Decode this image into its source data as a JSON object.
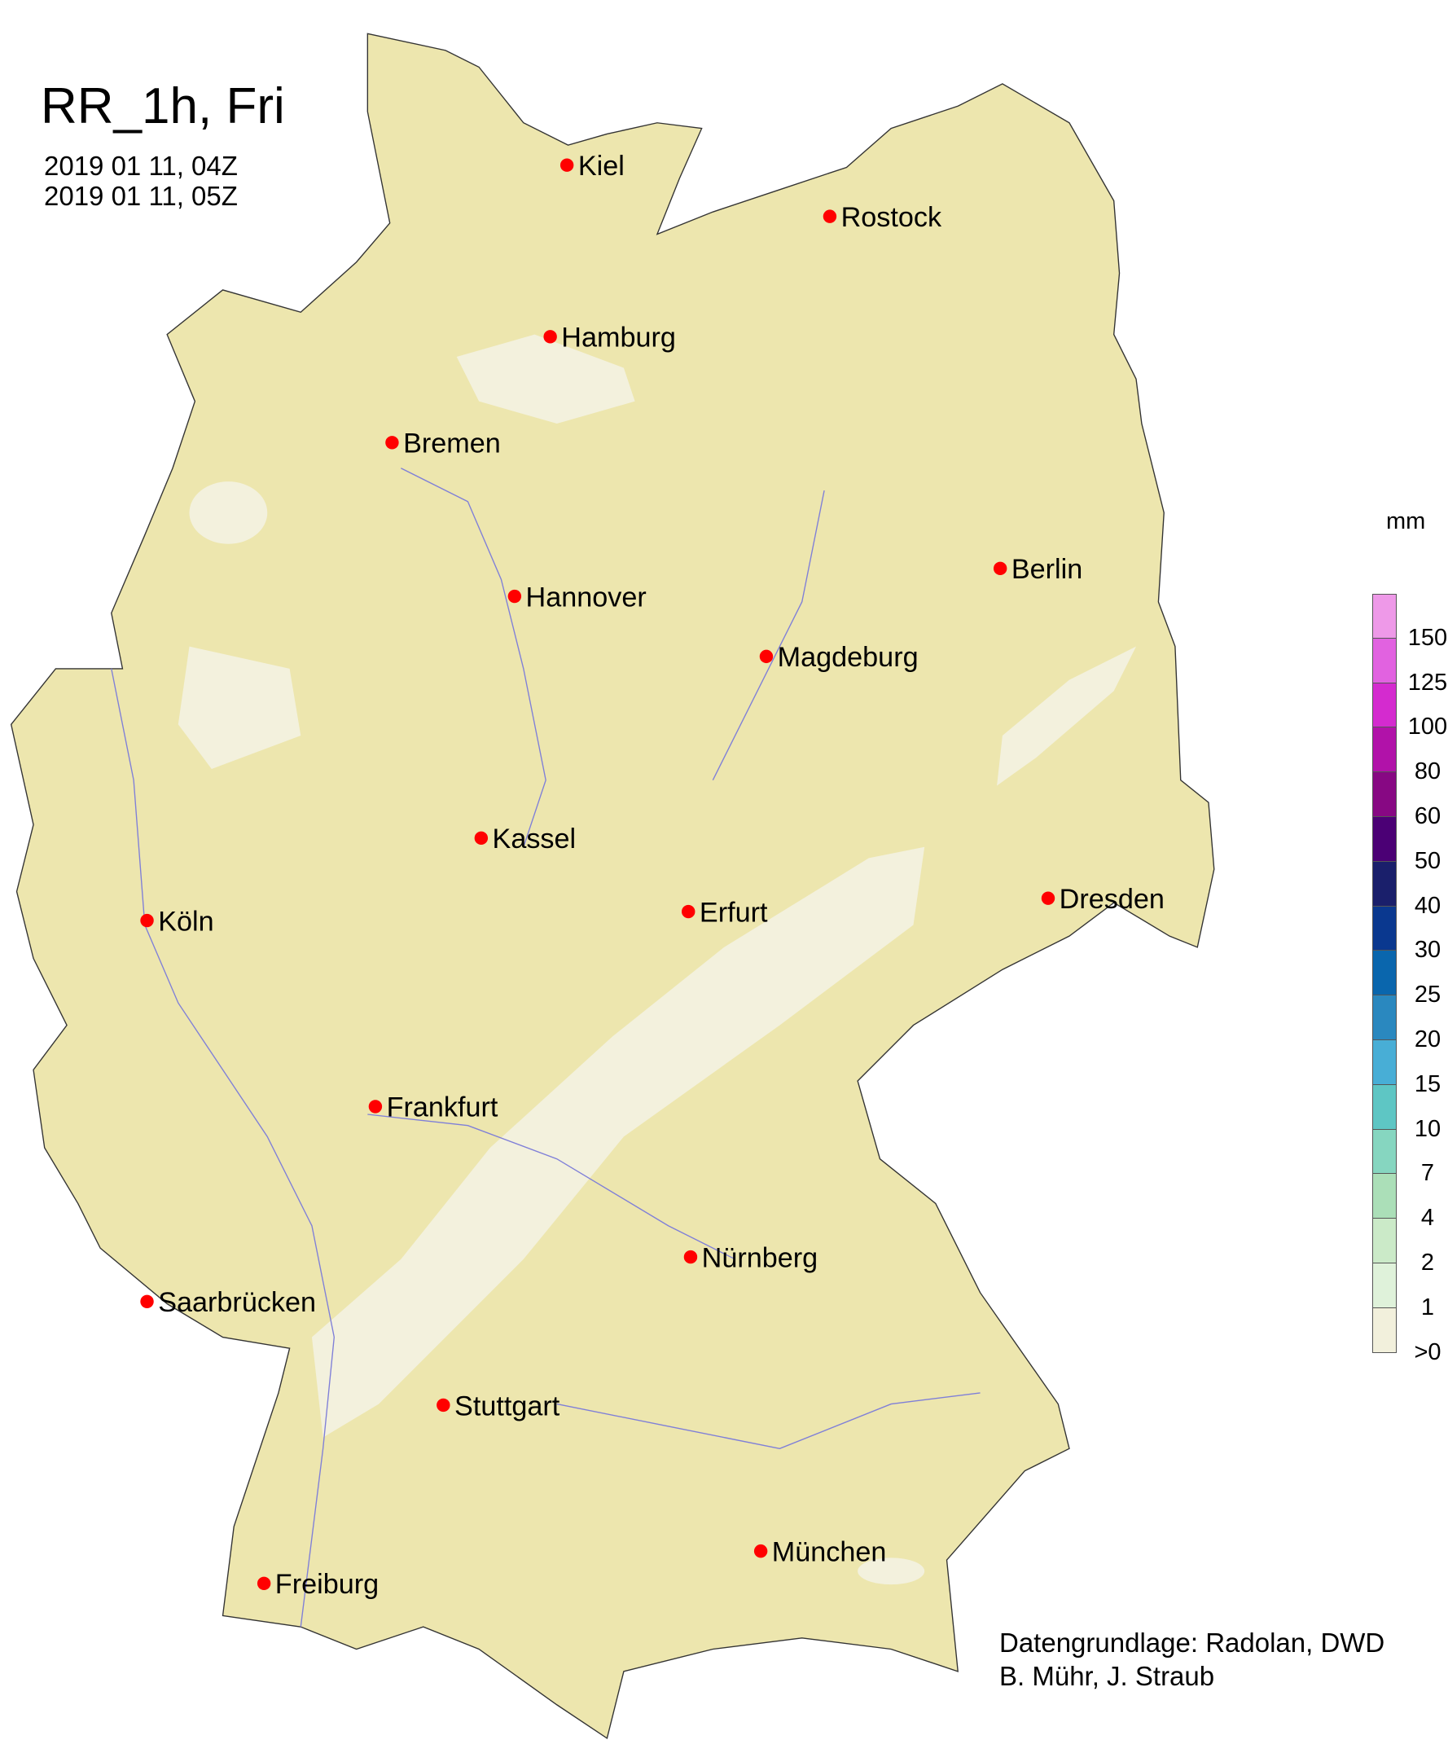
{
  "header": {
    "title": "RR_1h, Fri",
    "period_start": "2019 01 11, 04Z",
    "period_end": "2019 01 11, 05Z"
  },
  "map": {
    "land_color": "#ede6ae",
    "light_precip_color": "#f3f1dd",
    "marker_color": "#ff0000",
    "river_color": "#7f7fd8",
    "cities": [
      {
        "name": "Kiel"
      },
      {
        "name": "Rostock"
      },
      {
        "name": "Hamburg"
      },
      {
        "name": "Bremen"
      },
      {
        "name": "Berlin"
      },
      {
        "name": "Hannover"
      },
      {
        "name": "Magdeburg"
      },
      {
        "name": "Kassel"
      },
      {
        "name": "Köln"
      },
      {
        "name": "Erfurt"
      },
      {
        "name": "Dresden"
      },
      {
        "name": "Frankfurt"
      },
      {
        "name": "Saarbrücken"
      },
      {
        "name": "Nürnberg"
      },
      {
        "name": "Stuttgart"
      },
      {
        "name": "München"
      },
      {
        "name": "Freiburg"
      }
    ]
  },
  "legend": {
    "unit": "mm",
    "colors": [
      "#ee99e8",
      "#e162e0",
      "#d42bcf",
      "#b112a9",
      "#870883",
      "#4b0075",
      "#1a1f6b",
      "#0a388f",
      "#0a66ad",
      "#2a88bf",
      "#48aed6",
      "#5ec6c4",
      "#86d6c0",
      "#abdfb8",
      "#cbeac8",
      "#dff2da",
      "#f2f0dc"
    ],
    "labels": [
      "150",
      "125",
      "100",
      "80",
      "60",
      "50",
      "40",
      "30",
      "25",
      "20",
      "15",
      "10",
      "7",
      "4",
      "2",
      "1",
      ">0"
    ]
  },
  "credits": {
    "line1": "Datengrundlage: Radolan, DWD",
    "line2": "B. Mühr, J. Straub"
  }
}
